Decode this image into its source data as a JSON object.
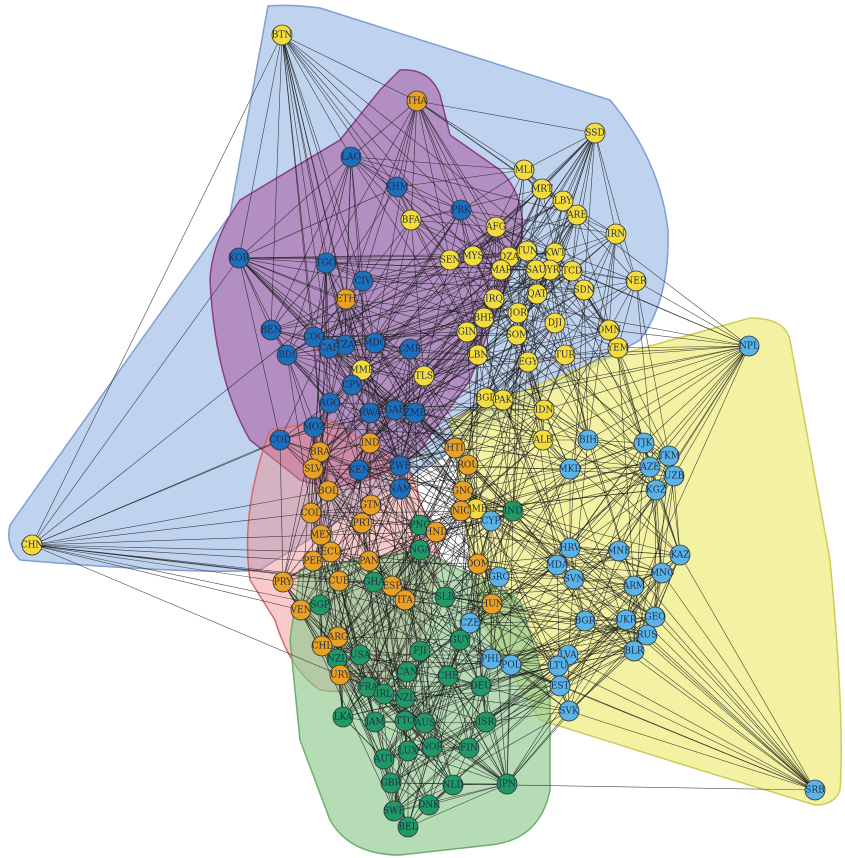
{
  "palette": {
    "blue": "#1c6fbd",
    "lightblue": "#5ab4e8",
    "yellow": "#f4dc3c",
    "orange": "#e9a124",
    "green": "#1f9a66"
  },
  "hulls": [
    {
      "color": "#aac4e8",
      "opacity": 0.75,
      "stroke": "#7f9fd0"
    },
    {
      "color": "#a8569f",
      "opacity": 0.55,
      "stroke": "#8a3f86"
    },
    {
      "color": "#ef8a8a",
      "opacity": 0.45,
      "stroke": "#d66a6a"
    },
    {
      "color": "#eeeb7a",
      "opacity": 0.7,
      "stroke": "#cfcb5a"
    },
    {
      "color": "#8fc98f",
      "opacity": 0.65,
      "stroke": "#6fae6f"
    }
  ],
  "nodes": [
    {
      "id": "BTN",
      "g": "yellow"
    },
    {
      "id": "THA",
      "g": "orange"
    },
    {
      "id": "SSD",
      "g": "yellow"
    },
    {
      "id": "LAO",
      "g": "blue"
    },
    {
      "id": "KHM",
      "g": "blue"
    },
    {
      "id": "PRK",
      "g": "blue"
    },
    {
      "id": "MLI",
      "g": "yellow"
    },
    {
      "id": "MRT",
      "g": "yellow"
    },
    {
      "id": "LBY",
      "g": "yellow"
    },
    {
      "id": "ARE",
      "g": "yellow"
    },
    {
      "id": "IRN",
      "g": "yellow"
    },
    {
      "id": "BFA",
      "g": "yellow"
    },
    {
      "id": "AFG",
      "g": "yellow"
    },
    {
      "id": "KOR",
      "g": "blue"
    },
    {
      "id": "TGO",
      "g": "blue"
    },
    {
      "id": "SEN",
      "g": "yellow"
    },
    {
      "id": "MYS",
      "g": "yellow"
    },
    {
      "id": "DZA",
      "g": "yellow"
    },
    {
      "id": "TUN",
      "g": "yellow"
    },
    {
      "id": "KWT",
      "g": "yellow"
    },
    {
      "id": "SYR",
      "g": "yellow"
    },
    {
      "id": "TCD",
      "g": "yellow"
    },
    {
      "id": "NER",
      "g": "yellow"
    },
    {
      "id": "MAR",
      "g": "yellow"
    },
    {
      "id": "SAU",
      "g": "yellow"
    },
    {
      "id": "CIV",
      "g": "blue"
    },
    {
      "id": "ETH",
      "g": "orange"
    },
    {
      "id": "IRQ",
      "g": "yellow"
    },
    {
      "id": "QAT",
      "g": "yellow"
    },
    {
      "id": "SDN",
      "g": "yellow"
    },
    {
      "id": "BHR",
      "g": "yellow"
    },
    {
      "id": "JOR",
      "g": "yellow"
    },
    {
      "id": "DJI",
      "g": "yellow"
    },
    {
      "id": "OMN",
      "g": "yellow"
    },
    {
      "id": "YEM",
      "g": "yellow"
    },
    {
      "id": "GIN",
      "g": "yellow"
    },
    {
      "id": "SOM",
      "g": "yellow"
    },
    {
      "id": "LBN",
      "g": "yellow"
    },
    {
      "id": "EGY",
      "g": "yellow"
    },
    {
      "id": "TUR",
      "g": "yellow"
    },
    {
      "id": "BEN",
      "g": "blue"
    },
    {
      "id": "COG",
      "g": "blue"
    },
    {
      "id": "TZA",
      "g": "blue"
    },
    {
      "id": "CAF",
      "g": "blue"
    },
    {
      "id": "BDI",
      "g": "blue"
    },
    {
      "id": "MDG",
      "g": "blue"
    },
    {
      "id": "CMR",
      "g": "blue"
    },
    {
      "id": "MMR",
      "g": "yellow"
    },
    {
      "id": "TLS",
      "g": "yellow"
    },
    {
      "id": "BGD",
      "g": "yellow"
    },
    {
      "id": "PAK",
      "g": "yellow"
    },
    {
      "id": "IDN",
      "g": "yellow"
    },
    {
      "id": "NPL",
      "g": "lightblue"
    },
    {
      "id": "CPV",
      "g": "blue"
    },
    {
      "id": "AGO",
      "g": "blue"
    },
    {
      "id": "RWA",
      "g": "blue"
    },
    {
      "id": "MOZ",
      "g": "blue"
    },
    {
      "id": "COD",
      "g": "blue"
    },
    {
      "id": "GAB",
      "g": "blue"
    },
    {
      "id": "ZMB",
      "g": "blue"
    },
    {
      "id": "ALB",
      "g": "yellow"
    },
    {
      "id": "BIH",
      "g": "lightblue"
    },
    {
      "id": "TJK",
      "g": "lightblue"
    },
    {
      "id": "TKM",
      "g": "lightblue"
    },
    {
      "id": "AZE",
      "g": "lightblue"
    },
    {
      "id": "UZB",
      "g": "lightblue"
    },
    {
      "id": "KGZ",
      "g": "lightblue"
    },
    {
      "id": "BRA",
      "g": "orange"
    },
    {
      "id": "IND",
      "g": "orange"
    },
    {
      "id": "SLV",
      "g": "orange"
    },
    {
      "id": "KEN",
      "g": "blue"
    },
    {
      "id": "ZWE",
      "g": "blue"
    },
    {
      "id": "HTI",
      "g": "orange"
    },
    {
      "id": "ROU",
      "g": "orange"
    },
    {
      "id": "MKD",
      "g": "lightblue"
    },
    {
      "id": "BOL",
      "g": "orange"
    },
    {
      "id": "NAM",
      "g": "blue"
    },
    {
      "id": "GNQ",
      "g": "orange"
    },
    {
      "id": "GMB",
      "g": "yellow"
    },
    {
      "id": "IND2",
      "g": "green",
      "label": "IND"
    },
    {
      "id": "COL",
      "g": "orange"
    },
    {
      "id": "GTM",
      "g": "orange"
    },
    {
      "id": "NIC",
      "g": "orange"
    },
    {
      "id": "CYP",
      "g": "lightblue"
    },
    {
      "id": "PRT",
      "g": "orange"
    },
    {
      "id": "PNG",
      "g": "green"
    },
    {
      "id": "MEX",
      "g": "orange"
    },
    {
      "id": "HND",
      "g": "orange"
    },
    {
      "id": "ECU",
      "g": "orange"
    },
    {
      "id": "PER",
      "g": "orange"
    },
    {
      "id": "PAN",
      "g": "orange"
    },
    {
      "id": "NGA",
      "g": "green"
    },
    {
      "id": "CHN",
      "g": "yellow"
    },
    {
      "id": "HRV",
      "g": "lightblue"
    },
    {
      "id": "MNE",
      "g": "lightblue"
    },
    {
      "id": "KAZ",
      "g": "lightblue"
    },
    {
      "id": "PRY",
      "g": "orange"
    },
    {
      "id": "CUB",
      "g": "orange"
    },
    {
      "id": "ESP",
      "g": "orange"
    },
    {
      "id": "GHA",
      "g": "green"
    },
    {
      "id": "DOM",
      "g": "orange"
    },
    {
      "id": "SVN",
      "g": "lightblue"
    },
    {
      "id": "MDA",
      "g": "lightblue"
    },
    {
      "id": "ARM",
      "g": "lightblue"
    },
    {
      "id": "MNG",
      "g": "lightblue"
    },
    {
      "id": "VEN",
      "g": "orange"
    },
    {
      "id": "SGP",
      "g": "green"
    },
    {
      "id": "GRC",
      "g": "lightblue"
    },
    {
      "id": "ITA",
      "g": "orange"
    },
    {
      "id": "SLB",
      "g": "green"
    },
    {
      "id": "HUN",
      "g": "orange"
    },
    {
      "id": "BGR",
      "g": "lightblue"
    },
    {
      "id": "GEO",
      "g": "lightblue"
    },
    {
      "id": "UKR",
      "g": "lightblue"
    },
    {
      "id": "RUS",
      "g": "lightblue"
    },
    {
      "id": "BLR",
      "g": "lightblue"
    },
    {
      "id": "ARG",
      "g": "orange"
    },
    {
      "id": "CHL",
      "g": "orange"
    },
    {
      "id": "NZL",
      "g": "green"
    },
    {
      "id": "CZE",
      "g": "lightblue"
    },
    {
      "id": "GUY",
      "g": "green"
    },
    {
      "id": "LVA",
      "g": "lightblue"
    },
    {
      "id": "USA",
      "g": "green"
    },
    {
      "id": "FJI",
      "g": "green"
    },
    {
      "id": "PHL",
      "g": "lightblue"
    },
    {
      "id": "POL",
      "g": "lightblue"
    },
    {
      "id": "LTU",
      "g": "lightblue"
    },
    {
      "id": "URY",
      "g": "orange"
    },
    {
      "id": "CAN",
      "g": "green"
    },
    {
      "id": "DEU",
      "g": "green"
    },
    {
      "id": "EST",
      "g": "lightblue"
    },
    {
      "id": "FRA",
      "g": "green"
    },
    {
      "id": "IRL",
      "g": "green"
    },
    {
      "id": "NZL2",
      "g": "green",
      "label": "NZL"
    },
    {
      "id": "CHE",
      "g": "green"
    },
    {
      "id": "SVK",
      "g": "lightblue"
    },
    {
      "id": "LKA",
      "g": "green"
    },
    {
      "id": "JAM",
      "g": "green"
    },
    {
      "id": "TTO",
      "g": "green"
    },
    {
      "id": "AUS",
      "g": "green"
    },
    {
      "id": "ISR",
      "g": "green"
    },
    {
      "id": "LUX",
      "g": "green"
    },
    {
      "id": "NOR",
      "g": "green"
    },
    {
      "id": "FIN",
      "g": "green"
    },
    {
      "id": "AUT",
      "g": "green"
    },
    {
      "id": "SRB",
      "g": "lightblue"
    },
    {
      "id": "GBR",
      "g": "green"
    },
    {
      "id": "NLD",
      "g": "green"
    },
    {
      "id": "JPN",
      "g": "green"
    },
    {
      "id": "SWE",
      "g": "green"
    },
    {
      "id": "DNK",
      "g": "green"
    },
    {
      "id": "BEL",
      "g": "green"
    }
  ]
}
